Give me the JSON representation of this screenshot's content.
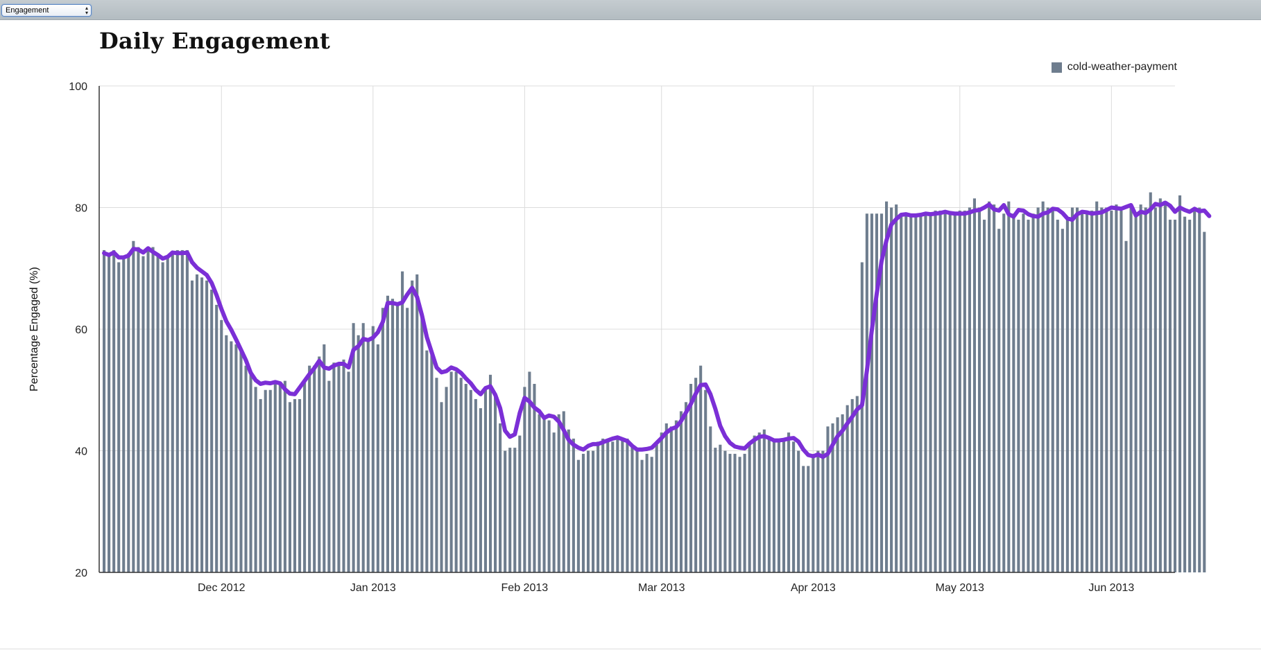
{
  "toolbar": {
    "select_value": "Engagement"
  },
  "chart_data": {
    "type": "bar",
    "title": "Daily Engagement",
    "ylabel": "Percentage Engaged (%)",
    "xlabel": "",
    "ylim": [
      20,
      100
    ],
    "yticks": [
      20,
      40,
      60,
      80,
      100
    ],
    "xlim": [
      "2012-11-06",
      "2013-06-14"
    ],
    "xticks": [
      {
        "date": "2012-12-01",
        "label": "Dec 2012"
      },
      {
        "date": "2013-01-01",
        "label": "Jan 2013"
      },
      {
        "date": "2013-02-01",
        "label": "Feb 2013"
      },
      {
        "date": "2013-03-01",
        "label": "Mar 2013"
      },
      {
        "date": "2013-04-01",
        "label": "Apr 2013"
      },
      {
        "date": "2013-05-01",
        "label": "May 2013"
      },
      {
        "date": "2013-06-01",
        "label": "Jun 2013"
      }
    ],
    "grid": true,
    "legend": "top-right",
    "colors": {
      "bars": "#6e7d8e",
      "line": "#7b2fd6",
      "grid": "#dcdcdc",
      "axis": "#333333"
    },
    "series": [
      {
        "name": "cold-weather-payment",
        "type": "bar",
        "start_date": "2012-11-07",
        "values": [
          73,
          72.5,
          73,
          71,
          72,
          72.5,
          74.5,
          73.5,
          72,
          73,
          73.5,
          72,
          71,
          72,
          72.5,
          73,
          73,
          73,
          68,
          69,
          68.5,
          68,
          66.5,
          64,
          61.5,
          59,
          58,
          57.5,
          56.5,
          54,
          53,
          50.5,
          48.5,
          50,
          50,
          51.5,
          51,
          51.5,
          48,
          48.5,
          48.5,
          51.5,
          54,
          54,
          55.5,
          57.5,
          51.5,
          54.5,
          54.5,
          55,
          53,
          61,
          59,
          61,
          58,
          60.5,
          57.5,
          63.5,
          65.5,
          65,
          64,
          69.5,
          63.5,
          68,
          69,
          62,
          56.5,
          56.5,
          52,
          48,
          50.5,
          53,
          53,
          52,
          51,
          50,
          48.5,
          47,
          50.5,
          52.5,
          49.5,
          44.5,
          40,
          40.5,
          40.5,
          42.5,
          50.5,
          53,
          51,
          46,
          45.5,
          45,
          43,
          46,
          46.5,
          43.5,
          42,
          38.5,
          39.5,
          40,
          40,
          41.5,
          42,
          41.5,
          41.5,
          42,
          42,
          42,
          41,
          40,
          38.5,
          39.5,
          39,
          41,
          43,
          44.5,
          44,
          45,
          46.5,
          48,
          51,
          52,
          54,
          50,
          44,
          40.5,
          41,
          40,
          39.5,
          39.5,
          39,
          39.5,
          41,
          42.5,
          43,
          43.5,
          42,
          41.5,
          42,
          41.5,
          43,
          41.5,
          40,
          37.5,
          37.5,
          39,
          40,
          40,
          44,
          44.5,
          45.5,
          46,
          47.5,
          48.5,
          49,
          71,
          79,
          79,
          79,
          79,
          81,
          80,
          80.5,
          79,
          79,
          79,
          79,
          79,
          79,
          79,
          79.5,
          79.5,
          79,
          79,
          79,
          79.5,
          79.5,
          80,
          81.5,
          80,
          78,
          81,
          80.5,
          76.5,
          79,
          81,
          79,
          78,
          79,
          78,
          79,
          80,
          81,
          80,
          79.5,
          78,
          76.5,
          78,
          80,
          80,
          79.5,
          79,
          79.5,
          81,
          80,
          80,
          79.5,
          80.5,
          79.5,
          74.5,
          80.5,
          79,
          80.5,
          80,
          82.5,
          80,
          81.5,
          80.5,
          78,
          78,
          82,
          78.5,
          78,
          80,
          80,
          76
        ]
      },
      {
        "name": "",
        "type": "line",
        "start_date": "2012-11-07",
        "values": [
          72.5,
          72.2,
          72.6,
          71.8,
          71.8,
          72.1,
          73.2,
          73.1,
          72.6,
          73.3,
          72.7,
          72.2,
          71.6,
          71.9,
          72.6,
          72.5,
          72.5,
          72.6,
          71,
          70.1,
          69.5,
          68.9,
          67.6,
          65.6,
          63.3,
          61.3,
          59.9,
          58.3,
          56.6,
          54.9,
          52.8,
          51.6,
          51,
          51.2,
          51.1,
          51.3,
          51.1,
          50.1,
          49.4,
          49.3,
          50.4,
          51.5,
          52.6,
          53.6,
          54.8,
          53.7,
          53.5,
          54,
          54.3,
          54.3,
          53.7,
          56.6,
          57.2,
          58.4,
          58.2,
          58.6,
          59.5,
          61.2,
          64.3,
          64.3,
          64.1,
          64.4,
          65.7,
          66.8,
          65.3,
          62.3,
          58.7,
          56.2,
          53.7,
          52.9,
          53.1,
          53.7,
          53.4,
          52.8,
          51.9,
          51.1,
          50,
          49.3,
          50.3,
          50.6,
          49.2,
          47,
          43.3,
          42.3,
          42.7,
          46.2,
          48.7,
          48.1,
          47.1,
          46.5,
          45.4,
          45.8,
          45.6,
          44.8,
          43.4,
          41.8,
          41,
          40.5,
          40.2,
          40.8,
          41.1,
          41.1,
          41.4,
          41.7,
          42,
          42.2,
          41.9,
          41.6,
          40.8,
          40.2,
          40.2,
          40.3,
          40.5,
          41.3,
          42.1,
          43,
          43.6,
          43.9,
          44.9,
          46.3,
          47.7,
          49.4,
          50.8,
          50.9,
          49.3,
          46.9,
          44.1,
          42.4,
          41.3,
          40.7,
          40.5,
          40.4,
          41.2,
          41.8,
          42.3,
          42.4,
          42.1,
          41.7,
          41.7,
          41.8,
          42,
          42.1,
          41.5,
          40.2,
          39.3,
          39.1,
          39.4,
          39,
          39.5,
          41,
          42.4,
          43.3,
          44.5,
          45.6,
          46.8,
          47.5,
          53.2,
          59.8,
          65.8,
          71.2,
          74.6,
          77.2,
          78.1,
          78.8,
          78.9,
          78.7,
          78.7,
          78.8,
          79,
          78.9,
          79,
          79.1,
          79.3,
          79.1,
          79,
          79,
          79,
          79.2,
          79.5,
          79.6,
          80,
          80.5,
          79.7,
          79.5,
          80.4,
          78.9,
          78.5,
          79.6,
          79.5,
          78.9,
          78.6,
          78.5,
          79,
          79.2,
          79.8,
          79.7,
          79.1,
          78.2,
          78,
          78.9,
          79.3,
          79.2,
          79,
          79.1,
          79.2,
          79.6,
          80,
          79.9,
          79.8,
          80.1,
          80.4,
          78.7,
          79.3,
          79.1,
          79.7,
          80.6,
          80.4,
          80.8,
          80.3,
          79.3,
          80,
          79.6,
          79.3,
          79.8,
          79.4,
          79.5,
          78.6
        ]
      }
    ]
  }
}
